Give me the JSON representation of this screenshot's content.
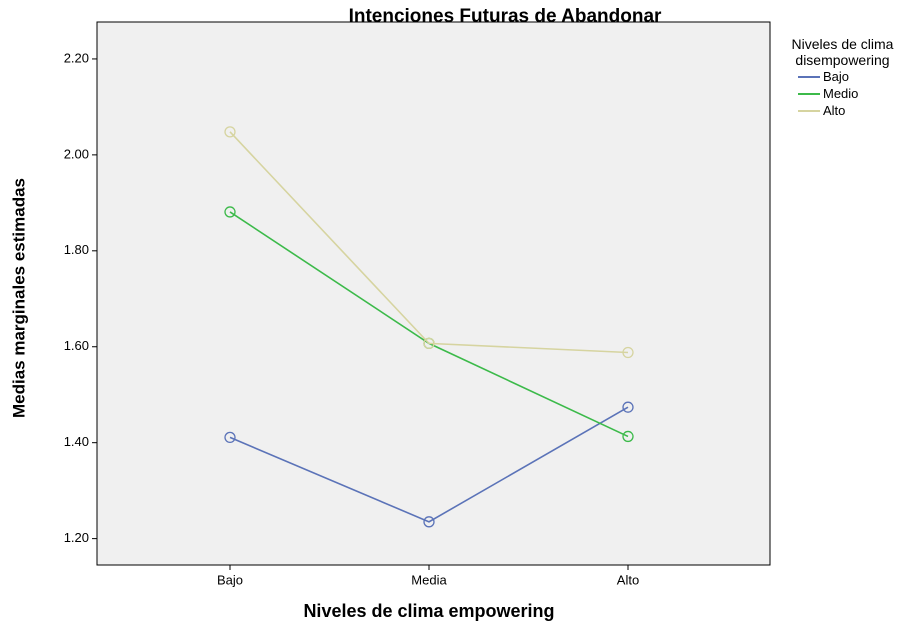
{
  "chart_data": {
    "type": "line",
    "title": "Intenciones Futuras de Abandonar",
    "xlabel": "Niveles de clima empowering",
    "ylabel": "Medias marginales estimadas",
    "legend_title": "Niveles de clima disempowering",
    "categories": [
      "Bajo",
      "Media",
      "Alto"
    ],
    "series": [
      {
        "name": "Bajo",
        "color": "#5b73b8",
        "values": [
          1.411,
          1.235,
          1.474
        ]
      },
      {
        "name": "Medio",
        "color": "#3cba4a",
        "values": [
          1.881,
          1.607,
          1.413
        ]
      },
      {
        "name": "Alto",
        "color": "#d6d4a0",
        "values": [
          2.048,
          1.607,
          1.588
        ]
      }
    ],
    "ylim": [
      1.145,
      2.277
    ],
    "yticks": [
      {
        "value": 1.2,
        "label": "1.20"
      },
      {
        "value": 1.4,
        "label": "1.40"
      },
      {
        "value": 1.6,
        "label": "1.60"
      },
      {
        "value": 1.8,
        "label": "1.80"
      },
      {
        "value": 2.0,
        "label": "2.00"
      },
      {
        "value": 2.2,
        "label": "2.20"
      }
    ],
    "legend": "right"
  }
}
